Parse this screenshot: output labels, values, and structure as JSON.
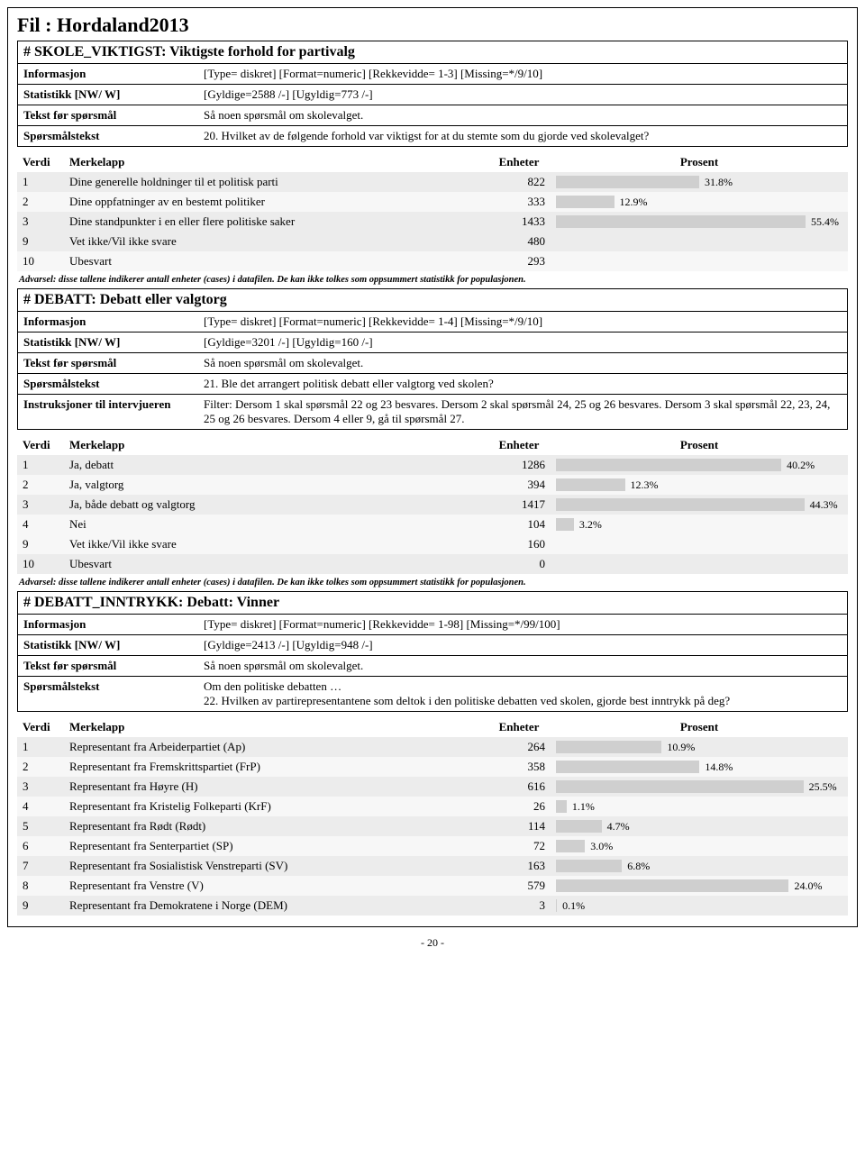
{
  "file_title": "Fil : Hordaland2013",
  "warning_text": "Advarsel: disse tallene indikerer antall enheter (cases) i datafilen. De kan ikke tolkes som oppsummert statistikk for populasjonen.",
  "page_number": "- 20 -",
  "bar_color": "#cfcfcf",
  "row_bg_a": "#ececec",
  "row_bg_b": "#f7f7f7",
  "headers": {
    "verdi": "Verdi",
    "merkelapp": "Merkelapp",
    "enheter": "Enheter",
    "prosent": "Prosent"
  },
  "meta_labels": {
    "info": "Informasjon",
    "stat": "Statistikk [NW/ W]",
    "tekst": "Tekst før spørsmål",
    "sporsmal": "Spørsmålstekst",
    "instruks": "Instruksjoner til intervjueren"
  },
  "sections": [
    {
      "title": "# SKOLE_VIKTIGST: Viktigste forhold for partivalg",
      "meta": [
        {
          "k": "info",
          "v": "[Type= diskret] [Format=numeric] [Rekkevidde= 1-3] [Missing=*/9/10]"
        },
        {
          "k": "stat",
          "v": "[Gyldige=2588 /-] [Ugyldig=773 /-]"
        },
        {
          "k": "tekst",
          "v": "Så noen spørsmål om skolevalget."
        },
        {
          "k": "sporsmal",
          "v": "20. Hvilket av de følgende forhold var viktigst for at du stemte som du gjorde ved skolevalget?"
        }
      ],
      "rows": [
        {
          "v": "1",
          "l": "Dine generelle holdninger til et politisk parti",
          "e": "822",
          "p": "31.8%",
          "pw": 31.8
        },
        {
          "v": "2",
          "l": "Dine oppfatninger av en bestemt politiker",
          "e": "333",
          "p": "12.9%",
          "pw": 12.9
        },
        {
          "v": "3",
          "l": "Dine standpunkter i en eller flere politiske saker",
          "e": "1433",
          "p": "55.4%",
          "pw": 55.4
        },
        {
          "v": "9",
          "l": "Vet ikke/Vil ikke svare",
          "e": "480",
          "p": "",
          "pw": 0,
          "missing": true
        },
        {
          "v": "10",
          "l": "Ubesvart",
          "e": "293",
          "p": "",
          "pw": 0,
          "missing": true
        }
      ],
      "max_pct": 56
    },
    {
      "title": "# DEBATT: Debatt eller valgtorg",
      "meta": [
        {
          "k": "info",
          "v": "[Type= diskret] [Format=numeric] [Rekkevidde= 1-4] [Missing=*/9/10]"
        },
        {
          "k": "stat",
          "v": "[Gyldige=3201 /-] [Ugyldig=160 /-]"
        },
        {
          "k": "tekst",
          "v": "Så noen spørsmål om skolevalget."
        },
        {
          "k": "sporsmal",
          "v": "21. Ble det arrangert politisk debatt eller valgtorg ved skolen?"
        },
        {
          "k": "instruks",
          "v": "Filter: Dersom 1 skal spørsmål 22 og 23 besvares.  Dersom 2 skal spørsmål 24, 25 og 26 besvares. Dersom 3 skal spørsmål 22, 23, 24, 25 og 26 besvares. Dersom 4 eller 9, gå til spørsmål 27."
        }
      ],
      "rows": [
        {
          "v": "1",
          "l": "Ja, debatt",
          "e": "1286",
          "p": "40.2%",
          "pw": 40.2
        },
        {
          "v": "2",
          "l": "Ja, valgtorg",
          "e": "394",
          "p": "12.3%",
          "pw": 12.3
        },
        {
          "v": "3",
          "l": "Ja, både debatt og valgtorg",
          "e": "1417",
          "p": "44.3%",
          "pw": 44.3
        },
        {
          "v": "4",
          "l": "Nei",
          "e": "104",
          "p": "3.2%",
          "pw": 3.2
        },
        {
          "v": "9",
          "l": "Vet ikke/Vil ikke svare",
          "e": "160",
          "p": "",
          "pw": 0,
          "missing": true
        },
        {
          "v": "10",
          "l": "Ubesvart",
          "e": "0",
          "p": "",
          "pw": 0,
          "missing": true
        }
      ],
      "max_pct": 45
    },
    {
      "title": "# DEBATT_INNTRYKK: Debatt: Vinner",
      "meta": [
        {
          "k": "info",
          "v": "[Type= diskret] [Format=numeric] [Rekkevidde= 1-98] [Missing=*/99/100]"
        },
        {
          "k": "stat",
          "v": "[Gyldige=2413 /-] [Ugyldig=948 /-]"
        },
        {
          "k": "tekst",
          "v": "Så noen spørsmål om skolevalget."
        },
        {
          "k": "sporsmal",
          "v": "Om den politiske debatten …\n22. Hvilken av partirepresentantene som deltok i den politiske debatten ved skolen, gjorde best inntrykk på deg?"
        }
      ],
      "rows": [
        {
          "v": "1",
          "l": "Representant fra Arbeiderpartiet (Ap)",
          "e": "264",
          "p": "10.9%",
          "pw": 10.9
        },
        {
          "v": "2",
          "l": "Representant fra Fremskrittspartiet (FrP)",
          "e": "358",
          "p": "14.8%",
          "pw": 14.8
        },
        {
          "v": "3",
          "l": "Representant fra Høyre (H)",
          "e": "616",
          "p": "25.5%",
          "pw": 25.5
        },
        {
          "v": "4",
          "l": "Representant fra Kristelig Folkeparti (KrF)",
          "e": "26",
          "p": "1.1%",
          "pw": 1.1
        },
        {
          "v": "5",
          "l": "Representant fra Rødt (Rødt)",
          "e": "114",
          "p": "4.7%",
          "pw": 4.7
        },
        {
          "v": "6",
          "l": "Representant fra Senterpartiet (SP)",
          "e": "72",
          "p": "3.0%",
          "pw": 3.0
        },
        {
          "v": "7",
          "l": "Representant fra Sosialistisk Venstreparti (SV)",
          "e": "163",
          "p": "6.8%",
          "pw": 6.8
        },
        {
          "v": "8",
          "l": "Representant fra Venstre (V)",
          "e": "579",
          "p": "24.0%",
          "pw": 24.0
        },
        {
          "v": "9",
          "l": "Representant fra Demokratene i Norge (DEM)",
          "e": "3",
          "p": "0.1%",
          "pw": 0.1
        }
      ],
      "max_pct": 26,
      "no_warning": true
    }
  ]
}
